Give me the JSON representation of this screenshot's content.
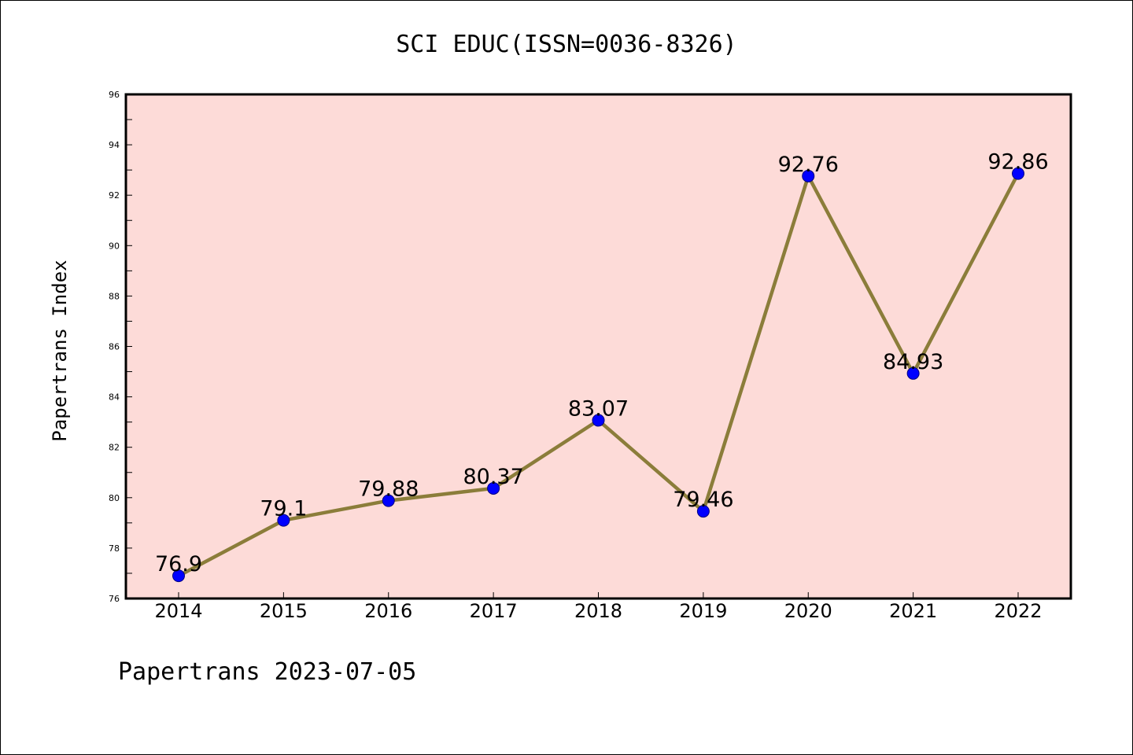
{
  "chart_data": {
    "type": "line",
    "title": "SCI EDUC(ISSN=0036-8326)",
    "xlabel": "",
    "ylabel": "Papertrans Index",
    "categories": [
      "2014",
      "2015",
      "2016",
      "2017",
      "2018",
      "2019",
      "2020",
      "2021",
      "2022"
    ],
    "series": [
      {
        "values": [
          76.9,
          79.1,
          79.88,
          80.37,
          83.07,
          79.46,
          92.76,
          84.93,
          92.86
        ],
        "labels": [
          "76.9",
          "79.1",
          "79.88",
          "80.37",
          "83.07",
          "79.46",
          "92.76",
          "84.93",
          "92.86"
        ]
      }
    ],
    "ylim": [
      76,
      96
    ],
    "yticks": [
      76,
      78,
      80,
      82,
      84,
      86,
      88,
      90,
      92,
      94,
      96
    ],
    "ytick_labels": [
      "76",
      "78",
      "80",
      "82",
      "84",
      "86",
      "88",
      "90",
      "92",
      "94",
      "96"
    ],
    "grid": false,
    "colors": {
      "plot_background": "#fddbd8",
      "line": "#8b7d3a",
      "marker": "#0000ff",
      "marker_edge": "#000080"
    }
  },
  "footer": {
    "text": "Papertrans 2023-07-05"
  }
}
